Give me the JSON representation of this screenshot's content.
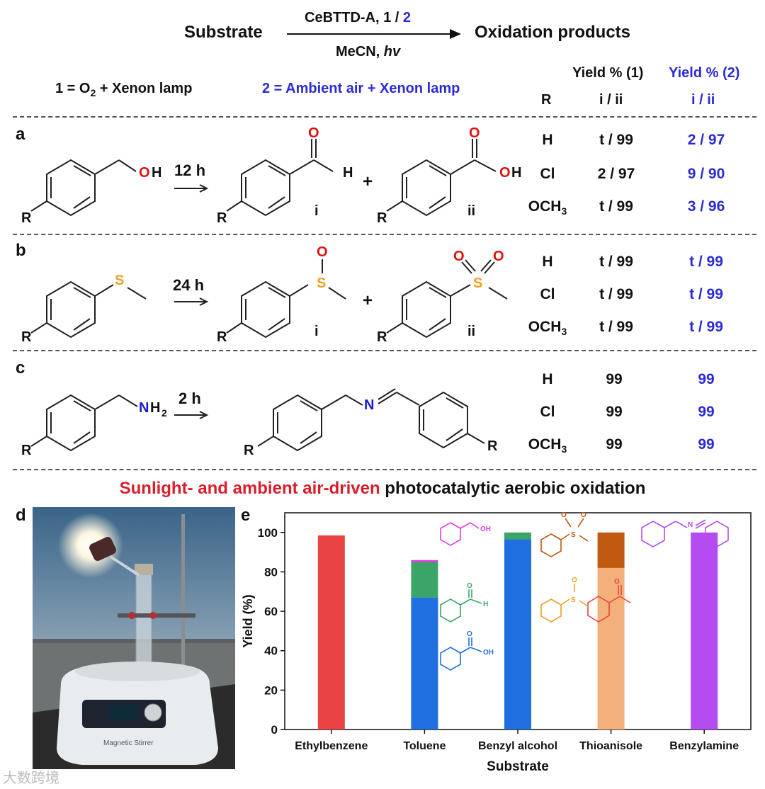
{
  "header": {
    "substrate": "Substrate",
    "reagent_top": "CeBTTD-A,  1 / ",
    "reagent_top_2": "2",
    "reagent_bottom": "MeCN, ",
    "reagent_hv": "hv",
    "products": "Oxidation products",
    "cond1": "1 = O",
    "cond1_sub": "2",
    "cond1_rest": " + Xenon lamp",
    "cond2": "2 = Ambient air + Xenon lamp"
  },
  "table_header": {
    "yield1": "Yield % (1)",
    "yield2": "Yield % (2)",
    "r": "R",
    "ii1": "i / ii",
    "ii2": "i / ii"
  },
  "panels": {
    "a": {
      "label": "a",
      "time": "12 h",
      "r_values": [
        "H",
        "Cl",
        "OCH",
        "3"
      ],
      "yield1": [
        "t / 99",
        "2 / 97",
        "t / 99"
      ],
      "yield2": [
        "2 / 97",
        "9 / 90",
        "3 / 96"
      ],
      "atoms": {
        "O": "O",
        "H": "H",
        "OH": "OH",
        "R": "R",
        "i": "i",
        "ii": "ii",
        "plus": "+",
        "O2": "O",
        "H2": "H"
      }
    },
    "b": {
      "label": "b",
      "time": "24 h",
      "r_values": [
        "H",
        "Cl",
        "OCH",
        "3"
      ],
      "yield1": [
        "t / 99",
        "t / 99",
        "t / 99"
      ],
      "yield2": [
        "t / 99",
        "t / 99",
        "t / 99"
      ],
      "atoms": {
        "S": "S",
        "O": "O",
        "R": "R",
        "i": "i",
        "ii": "ii",
        "plus": "+"
      }
    },
    "c": {
      "label": "c",
      "time": "2 h",
      "r_values": [
        "H",
        "Cl",
        "OCH",
        "3"
      ],
      "yield1": [
        "99",
        "99",
        "99"
      ],
      "yield2": [
        "99",
        "99",
        "99"
      ],
      "atoms": {
        "N": "N",
        "H": "H",
        "sub2": "2",
        "R": "R"
      }
    }
  },
  "banner": {
    "red": "Sunlight- and ambient air-driven",
    "black": " photocatalytic aerobic oxidation"
  },
  "panel_d": {
    "label": "d",
    "device_label": "Magnetic Stirrer"
  },
  "panel_e": {
    "label": "e"
  },
  "chart_data": {
    "type": "bar",
    "stacked": true,
    "xlabel": "Substrate",
    "ylabel": "Yield (%)",
    "ylim": [
      0,
      110
    ],
    "yticks": [
      0,
      20,
      40,
      60,
      80,
      100
    ],
    "categories": [
      "Ethylbenzene",
      "Toluene",
      "Benzyl alcohol",
      "Thioanisole",
      "Benzylamine"
    ],
    "bars": [
      {
        "category": "Ethylbenzene",
        "segments": [
          {
            "value": 98.5,
            "color": "#ea4343"
          }
        ]
      },
      {
        "category": "Toluene",
        "segments": [
          {
            "value": 67,
            "color": "#1f6fe0"
          },
          {
            "value": 18,
            "color": "#3aa566"
          },
          {
            "value": 1,
            "color": "#e03ce0"
          }
        ]
      },
      {
        "category": "Benzyl alcohol",
        "segments": [
          {
            "value": 96.5,
            "color": "#1f6fe0"
          },
          {
            "value": 3.5,
            "color": "#3aa566"
          }
        ]
      },
      {
        "category": "Thioanisole",
        "segments": [
          {
            "value": 82,
            "color": "#f4b07a"
          },
          {
            "value": 18,
            "color": "#bf5a10"
          }
        ]
      },
      {
        "category": "Benzylamine",
        "segments": [
          {
            "value": 100,
            "color": "#b44cf2"
          }
        ]
      }
    ],
    "structure_labels": {
      "OH": "OH",
      "O": "O",
      "H": "H",
      "S": "S",
      "N": "N"
    }
  },
  "watermark": "大数跨境",
  "colors": {
    "blue": "#2b2bd6",
    "red": "#d81e2a",
    "oxygen": "#e01010",
    "sulfur": "#f0a020",
    "nitrogen": "#1a1ad0"
  }
}
